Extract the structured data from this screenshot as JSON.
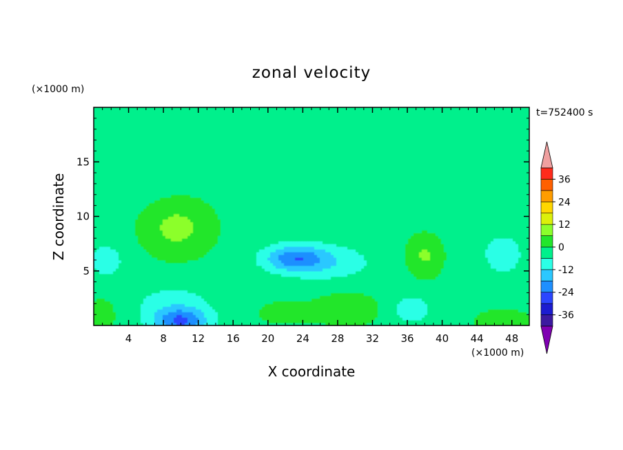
{
  "chart_data": {
    "type": "heatmap",
    "title": "zonal velocity",
    "xlabel": "X coordinate",
    "ylabel": "Z coordinate",
    "x_unit": "(×1000 m)",
    "y_unit": "(×1000 m)",
    "time_label": "t=752400 s",
    "xlim": [
      0,
      50
    ],
    "ylim": [
      0,
      20
    ],
    "x_ticks": [
      4,
      8,
      12,
      16,
      20,
      24,
      28,
      32,
      36,
      40,
      44,
      48
    ],
    "y_ticks": [
      5,
      10,
      15
    ],
    "colorbar": {
      "levels": [
        -42,
        -36,
        -30,
        -24,
        -18,
        -12,
        -6,
        0,
        6,
        12,
        18,
        24,
        30,
        36,
        42
      ],
      "tick_labels": [
        "36",
        "24",
        "12",
        "0",
        "-12",
        "-24",
        "-36"
      ],
      "tick_values": [
        36,
        24,
        12,
        0,
        -12,
        -24,
        -36
      ],
      "colors": [
        "#7f00b2",
        "#3c1aa0",
        "#1c1cd0",
        "#2b46ff",
        "#1f8fff",
        "#2bc8ff",
        "#2bffe6",
        "#00f08c",
        "#22e62b",
        "#8cff2b",
        "#dcf00a",
        "#ffd700",
        "#ff9d00",
        "#ff6000",
        "#ff2b1c",
        "#f0a0a0"
      ]
    },
    "field_features": [
      {
        "x": 9.5,
        "z": 9.0,
        "sx": 4.0,
        "sz": 2.6,
        "value": 10
      },
      {
        "x": 10.0,
        "z": 0.4,
        "sx": 3.0,
        "sz": 1.2,
        "value": -21
      },
      {
        "x": 9.0,
        "z": 2.0,
        "sx": 5.0,
        "sz": 2.0,
        "value": -6
      },
      {
        "x": 23.0,
        "z": 6.2,
        "sx": 3.5,
        "sz": 1.2,
        "value": -18
      },
      {
        "x": 27.0,
        "z": 5.8,
        "sx": 5.0,
        "sz": 1.6,
        "value": -8
      },
      {
        "x": 38.0,
        "z": 6.5,
        "sx": 2.0,
        "sz": 2.0,
        "value": 9
      },
      {
        "x": 29.0,
        "z": 1.5,
        "sx": 3.5,
        "sz": 1.4,
        "value": 8
      },
      {
        "x": 36.5,
        "z": 1.5,
        "sx": 2.5,
        "sz": 1.5,
        "value": -7
      },
      {
        "x": 47.0,
        "z": 6.5,
        "sx": 2.5,
        "sz": 2.0,
        "value": -7
      },
      {
        "x": 47.0,
        "z": 0.4,
        "sx": 3.0,
        "sz": 1.0,
        "value": 7
      },
      {
        "x": 1.0,
        "z": 1.0,
        "sx": 1.5,
        "sz": 1.5,
        "value": 7
      },
      {
        "x": 1.5,
        "z": 6.0,
        "sx": 2.5,
        "sz": 2.0,
        "value": -6
      },
      {
        "x": 22.0,
        "z": 1.2,
        "sx": 3.0,
        "sz": 1.0,
        "value": 6
      },
      {
        "x": 40.0,
        "z": 15.0,
        "sx": 10.0,
        "sz": 5.0,
        "value": -4
      },
      {
        "x": 5.0,
        "z": 16.0,
        "sx": 6.0,
        "sz": 4.0,
        "value": -4
      }
    ],
    "background_value": -2,
    "grid": false,
    "legend": "right"
  }
}
